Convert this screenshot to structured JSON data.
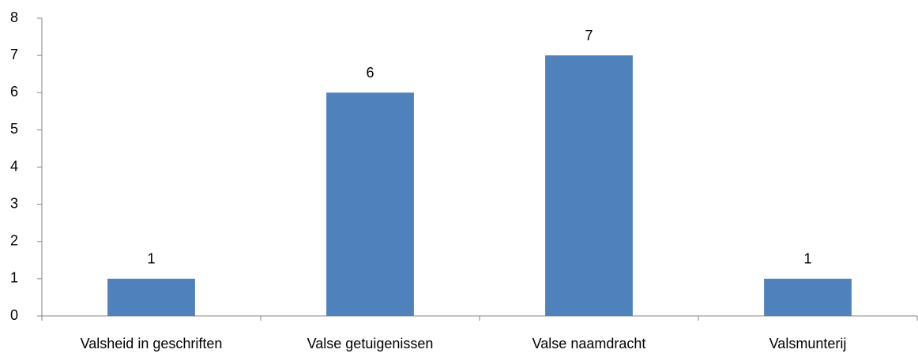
{
  "chart_data": {
    "type": "bar",
    "categories": [
      "Valsheid in geschriften",
      "Valse getuigenissen",
      "Valse naamdracht",
      "Valsmunterij"
    ],
    "values": [
      1,
      6,
      7,
      1
    ],
    "color": "#4f81bd",
    "ylim": [
      0,
      8
    ],
    "yticks": [
      0,
      1,
      2,
      3,
      4,
      5,
      6,
      7,
      8
    ],
    "grid": false,
    "data_labels": true
  }
}
